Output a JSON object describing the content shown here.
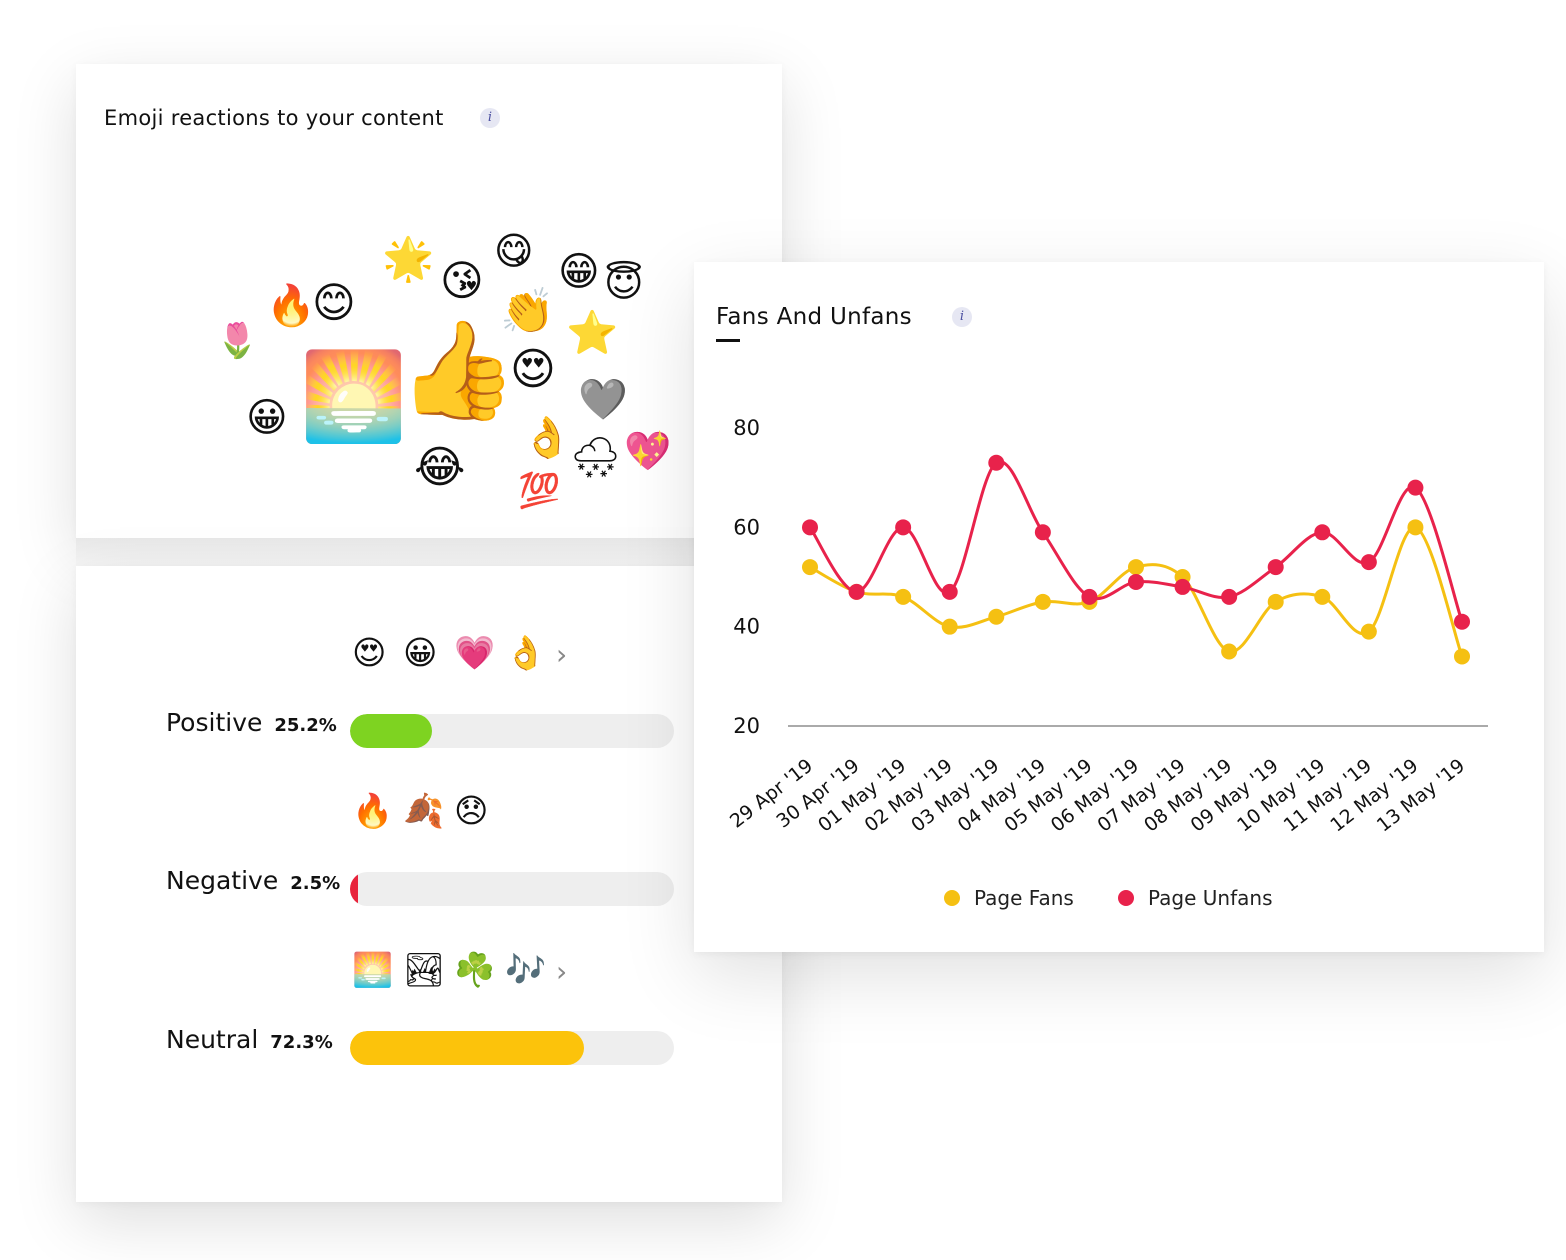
{
  "emoji_card": {
    "title": "Emoji reactions to your content",
    "info_glyph": "i",
    "cloud": [
      {
        "char": "🌷",
        "name": "tulip-icon"
      },
      {
        "char": "🔥",
        "name": "fire-icon"
      },
      {
        "char": "😊",
        "name": "smiling-face-icon"
      },
      {
        "char": "🌟",
        "name": "glowing-star-icon"
      },
      {
        "char": "😘",
        "name": "kiss-face-icon"
      },
      {
        "char": "😋",
        "name": "yum-face-icon"
      },
      {
        "char": "😁",
        "name": "grin-face-icon"
      },
      {
        "char": "😇",
        "name": "halo-face-icon"
      },
      {
        "char": "👏",
        "name": "clapping-hands-icon"
      },
      {
        "char": "⭐",
        "name": "star-icon"
      },
      {
        "char": "🌅",
        "name": "sunrise-icon"
      },
      {
        "char": "👍",
        "name": "thumbs-up-icon"
      },
      {
        "char": "😍",
        "name": "heart-eyes-icon"
      },
      {
        "char": "🩶",
        "name": "grey-heart-icon"
      },
      {
        "char": "😀",
        "name": "grinning-face-icon"
      },
      {
        "char": "👌",
        "name": "ok-hand-icon"
      },
      {
        "char": "🌨",
        "name": "snow-cloud-icon"
      },
      {
        "char": "💖",
        "name": "sparkling-heart-icon"
      },
      {
        "char": "😂",
        "name": "tears-of-joy-icon"
      },
      {
        "char": "💯",
        "name": "hundred-points-icon"
      }
    ]
  },
  "sentiment": [
    {
      "label": "Positive",
      "percent_text": "25.2%",
      "fraction": 0.252,
      "color": "#7ed321",
      "emojis": [
        "😍",
        "😀",
        "💗",
        "👌"
      ],
      "emoji_names": [
        "heart-eyes-icon",
        "grinning-face-icon",
        "pink-heart-icon",
        "ok-hand-icon"
      ],
      "has_more": true
    },
    {
      "label": "Negative",
      "percent_text": "2.5%",
      "fraction": 0.025,
      "color": "#e8243c",
      "emojis": [
        "🔥",
        "🍂",
        "😞"
      ],
      "emoji_names": [
        "fire-icon",
        "fallen-leaf-icon",
        "disappointed-face-icon"
      ],
      "has_more": false
    },
    {
      "label": "Neutral",
      "percent_text": "72.3%",
      "fraction": 0.723,
      "color": "#fcc30b",
      "emojis": [
        "🌅",
        "🏞",
        "☘️",
        "🎶"
      ],
      "emoji_names": [
        "sunrise-icon",
        "national-park-icon",
        "shamrock-icon",
        "music-notes-icon"
      ],
      "has_more": true
    }
  ],
  "more_chevron": "›",
  "fans_card": {
    "title": "Fans And Unfans",
    "info_glyph": "i"
  },
  "chart_data": {
    "type": "line",
    "title": "Fans And Unfans",
    "x": [
      "29 Apr '19",
      "30 Apr '19",
      "01 May '19",
      "02 May '19",
      "03 May '19",
      "04 May '19",
      "05 May '19",
      "06 May '19",
      "07 May '19",
      "08 May '19",
      "09 May '19",
      "10 May '19",
      "11 May '19",
      "12 May '19",
      "13 May '19"
    ],
    "series": [
      {
        "name": "Page Fans",
        "color": "#f5c012",
        "values": [
          52,
          47,
          46,
          40,
          42,
          45,
          45,
          52,
          50,
          35,
          45,
          46,
          39,
          60,
          34
        ]
      },
      {
        "name": "Page Unfans",
        "color": "#e8224b",
        "values": [
          60,
          47,
          60,
          47,
          73,
          59,
          46,
          49,
          48,
          46,
          52,
          59,
          53,
          68,
          41
        ]
      }
    ],
    "y_ticks": [
      20,
      40,
      60,
      80
    ],
    "ylim": [
      20,
      80
    ],
    "smooth": true,
    "grid": false,
    "legend": "bottom-center"
  }
}
